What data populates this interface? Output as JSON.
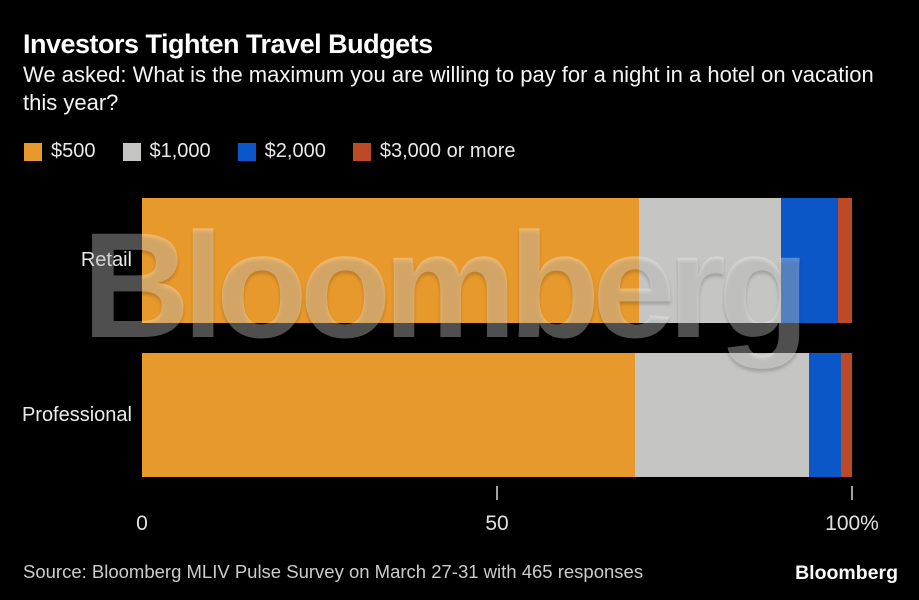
{
  "header": {
    "title": "Investors Tighten Travel Budgets",
    "subtitle": "We asked: What is the maximum you are willing to pay for a night in a hotel on vacation this year?"
  },
  "watermark": {
    "text": "Bloomberg"
  },
  "footer": {
    "source": "Source: Bloomberg MLIV Pulse Survey on March 27-31 with 465 responses",
    "logo": "Bloomberg"
  },
  "colors": {
    "background": "#000000",
    "orange": "#E8992C",
    "silver": "#C5C5C3",
    "blue": "#0B57C8",
    "rust": "#BC4A26",
    "tick": "#A2A2A2"
  },
  "chart_data": {
    "type": "bar",
    "orientation": "horizontal",
    "stacked": true,
    "unit": "percent",
    "title": "Investors Tighten Travel Budgets",
    "question": "We asked: What is the maximum you are willing to pay for a night in a hotel on vacation this year?",
    "categories": [
      "Retail",
      "Professional"
    ],
    "series": [
      {
        "name": "$500",
        "color": "#E8992C",
        "values": [
          70,
          69.5
        ]
      },
      {
        "name": "$1,000",
        "color": "#C5C5C3",
        "values": [
          20,
          24.5
        ]
      },
      {
        "name": "$2,000",
        "color": "#0B57C8",
        "values": [
          8,
          4.5
        ]
      },
      {
        "name": "$3,000 or more",
        "color": "#BC4A26",
        "values": [
          2,
          1.5
        ]
      }
    ],
    "x_axis": {
      "range": [
        0,
        100
      ],
      "tick_labels": [
        {
          "value": 0,
          "label": "0"
        },
        {
          "value": 50,
          "label": "50"
        },
        {
          "value": 100,
          "label": "100%"
        }
      ],
      "tick_marks": [
        50,
        100
      ]
    },
    "legend_position": "top",
    "grid": false
  }
}
